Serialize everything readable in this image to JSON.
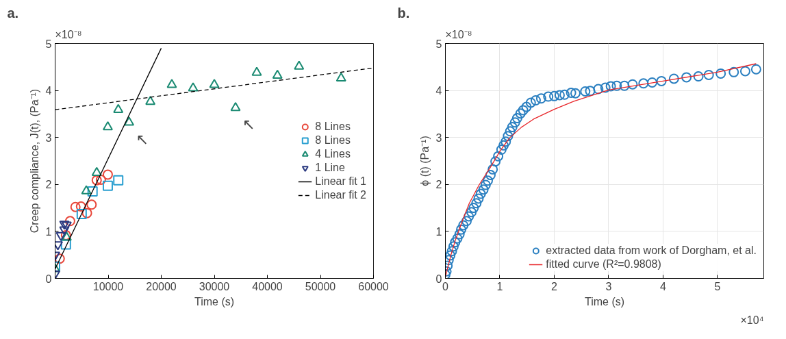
{
  "chart_data": [
    {
      "type": "scatter",
      "title": "a.",
      "xlabel": "Time (s)",
      "ylabel": "Creep compliance, J(t), (Pa⁻¹)",
      "xlim": [
        0,
        60000
      ],
      "ylim": [
        0,
        5
      ],
      "xticks": [
        10000,
        20000,
        30000,
        40000,
        50000,
        60000
      ],
      "yticks": [
        0,
        1,
        2,
        3,
        4,
        5
      ],
      "grid": false,
      "legend": "right",
      "series": [
        {
          "name": "8 Lines",
          "color": "#e8473a",
          "marker": "circle",
          "x": [
            870,
            2040,
            2830,
            3830,
            4880,
            6010,
            6880,
            7840,
            8630,
            9930
          ],
          "values": [
            0.42,
            0.92,
            1.22,
            1.52,
            1.53,
            1.39,
            1.57,
            2.09,
            2.1,
            2.21
          ]
        },
        {
          "name": "8 Lines",
          "color": "#2a9fd0",
          "marker": "square",
          "x": [
            0,
            2040,
            5010,
            7060,
            9930,
            11900
          ],
          "values": [
            0.25,
            0.72,
            1.37,
            1.85,
            1.97,
            2.09
          ]
        },
        {
          "name": "4 Lines",
          "color": "#1a8a72",
          "marker": "triangle",
          "x": [
            0,
            2180,
            5880,
            7840,
            9930,
            11900,
            13940,
            17950,
            22000,
            26000,
            30000,
            34000,
            38000,
            41900,
            45970,
            53900
          ],
          "values": [
            0.2,
            0.87,
            1.86,
            2.25,
            3.22,
            3.59,
            3.32,
            3.76,
            4.12,
            4.05,
            4.12,
            3.63,
            4.38,
            4.32,
            4.51,
            4.26
          ]
        },
        {
          "name": "1 Line",
          "color": "#2b3a80",
          "x": [
            0,
            0,
            520,
            1090,
            1740,
            2180,
            1740
          ],
          "values": [
            0.1,
            0.5,
            0.72,
            0.92,
            1.04,
            1.14,
            1.16
          ]
        },
        {
          "name": "Linear fit 1",
          "type": "line",
          "color": "#000000",
          "line_style": "solid",
          "x": [
            0,
            20000
          ],
          "values": [
            0.2,
            4.9
          ]
        },
        {
          "name": "Linear fit 2",
          "type": "line",
          "color": "#000000",
          "line_style": "dashed",
          "x": [
            0,
            60000
          ],
          "values": [
            3.59,
            4.48
          ]
        }
      ],
      "annotations": [
        "×10⁻⁸",
        {
          "text": "↖",
          "x": 13940,
          "y": 3.32
        },
        {
          "text": "↖",
          "x": 34000,
          "y": 3.63
        }
      ]
    },
    {
      "type": "scatter",
      "title": "b.",
      "xlabel": "Time (s)",
      "ylabel": "ϕ (t) (Pa⁻¹)",
      "xlim": [
        0,
        5.85
      ],
      "ylim": [
        0,
        5
      ],
      "xticks": [
        0,
        1,
        2,
        3,
        4,
        5
      ],
      "yticks": [
        0,
        1,
        2,
        3,
        4,
        5
      ],
      "grid": true,
      "legend": "bottom right",
      "series": [
        {
          "name": "extracted data from work of Dorgham, et al.",
          "color": "#2a7fc0",
          "marker": "circle",
          "x": [
            0,
            0.02,
            0.04,
            0.06,
            0.09,
            0.12,
            0.15,
            0.18,
            0.22,
            0.26,
            0.29,
            0.33,
            0.39,
            0.43,
            0.48,
            0.52,
            0.57,
            0.61,
            0.65,
            0.7,
            0.74,
            0.78,
            0.83,
            0.87,
            0.92,
            0.97,
            1.03,
            1.07,
            1.11,
            1.15,
            1.19,
            1.23,
            1.28,
            1.32,
            1.38,
            1.43,
            1.49,
            1.57,
            1.66,
            1.76,
            1.89,
            2.0,
            2.1,
            2.19,
            2.31,
            2.39,
            2.57,
            2.66,
            2.81,
            2.94,
            3.04,
            3.15,
            3.29,
            3.44,
            3.64,
            3.8,
            3.97,
            4.2,
            4.43,
            4.65,
            4.84,
            5.06,
            5.3,
            5.51,
            5.71
          ],
          "values": [
            0.08,
            0.15,
            0.27,
            0.39,
            0.49,
            0.58,
            0.68,
            0.77,
            0.85,
            0.94,
            1.04,
            1.13,
            1.22,
            1.32,
            1.41,
            1.5,
            1.6,
            1.7,
            1.8,
            1.89,
            1.99,
            2.08,
            2.2,
            2.32,
            2.49,
            2.6,
            2.74,
            2.83,
            2.91,
            3.03,
            3.13,
            3.22,
            3.32,
            3.41,
            3.51,
            3.58,
            3.65,
            3.74,
            3.79,
            3.83,
            3.87,
            3.88,
            3.9,
            3.91,
            3.95,
            3.94,
            3.98,
            3.99,
            4.03,
            4.06,
            4.09,
            4.1,
            4.1,
            4.13,
            4.15,
            4.17,
            4.2,
            4.25,
            4.28,
            4.3,
            4.33,
            4.36,
            4.39,
            4.41,
            4.45
          ]
        },
        {
          "name": "fitted curve (R²=0.9808)",
          "type": "line",
          "color": "#e8262a",
          "line_style": "solid",
          "x": [
            0,
            0.1,
            0.18,
            0.31,
            0.44,
            0.62,
            0.83,
            1.01,
            1.18,
            1.4,
            1.62,
            2.0,
            2.36,
            3.0,
            4.0,
            5.0,
            5.71
          ],
          "values": [
            0.03,
            0.49,
            0.8,
            1.22,
            1.6,
            1.99,
            2.37,
            2.72,
            2.99,
            3.22,
            3.39,
            3.6,
            3.77,
            4.01,
            4.2,
            4.39,
            4.57
          ]
        }
      ],
      "annotations": [
        "×10⁻⁸",
        "×10⁴"
      ]
    }
  ]
}
